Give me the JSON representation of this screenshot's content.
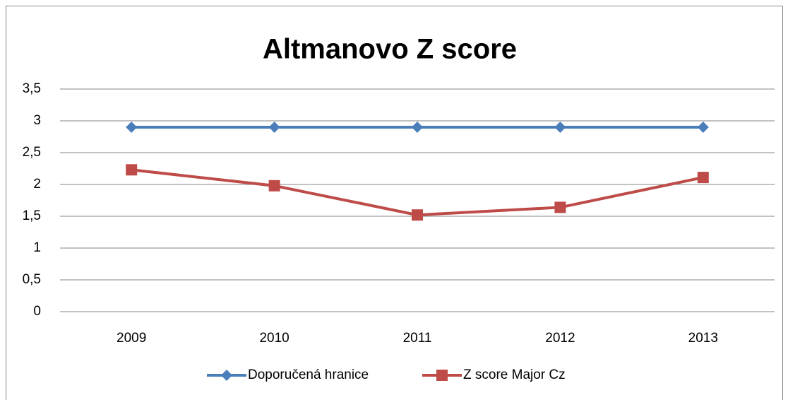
{
  "chart_data": {
    "type": "line",
    "title": "Altmanovo Z score",
    "categories": [
      "2009",
      "2010",
      "2011",
      "2012",
      "2013"
    ],
    "series": [
      {
        "name": "Doporučená hranice",
        "color": "#4a7ebb",
        "marker": "diamond",
        "values": [
          2.9,
          2.9,
          2.9,
          2.9,
          2.9
        ]
      },
      {
        "name": "Z score Major Cz",
        "color": "#be4b48",
        "marker": "square",
        "values": [
          2.23,
          1.98,
          1.52,
          1.64,
          2.11
        ]
      }
    ],
    "ylim": [
      0,
      3.5
    ],
    "yticks": [
      0,
      {
        "value": 0.5,
        "label": "0,5"
      },
      1,
      {
        "value": 1.5,
        "label": "1,5"
      },
      2,
      {
        "value": 2.5,
        "label": "2,5"
      },
      3,
      {
        "value": 3.5,
        "label": "3,5"
      }
    ],
    "grid": true,
    "legend": "bottom"
  }
}
